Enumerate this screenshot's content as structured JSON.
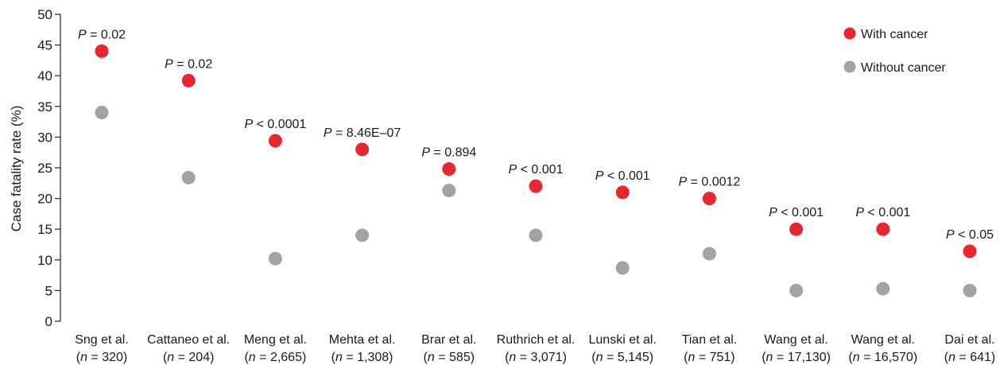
{
  "chart_data": {
    "type": "scatter",
    "title": "",
    "xlabel": "",
    "ylabel": "Case fatality rate (%)",
    "ylim": [
      0,
      50
    ],
    "yticks": [
      0,
      5,
      10,
      15,
      20,
      25,
      30,
      35,
      40,
      45,
      50
    ],
    "grid": false,
    "legend_position": "top-right",
    "categories": [
      {
        "name": "Sng et al.",
        "n": "320"
      },
      {
        "name": "Cattaneo et al.",
        "n": "204"
      },
      {
        "name": "Meng et al.",
        "n": "2,665"
      },
      {
        "name": "Mehta et al.",
        "n": "1,308"
      },
      {
        "name": "Brar et al.",
        "n": "585"
      },
      {
        "name": "Ruthrich et al.",
        "n": "3,071"
      },
      {
        "name": "Lunski et al.",
        "n": "5,145"
      },
      {
        "name": "Tian et al.",
        "n": "751"
      },
      {
        "name": "Wang et al.",
        "n": "17,130"
      },
      {
        "name": "Wang et al.",
        "n": "16,570"
      },
      {
        "name": "Dai et al.",
        "n": "641"
      }
    ],
    "p_values": [
      {
        "op": "=",
        "value": "0.02"
      },
      {
        "op": "=",
        "value": "0.02"
      },
      {
        "op": "<",
        "value": "0.0001"
      },
      {
        "op": "=",
        "value": "8.46E–07"
      },
      {
        "op": "=",
        "value": "0.894"
      },
      {
        "op": "<",
        "value": "0.001"
      },
      {
        "op": "<",
        "value": "0.001"
      },
      {
        "op": "=",
        "value": "0.0012"
      },
      {
        "op": "<",
        "value": "0.001"
      },
      {
        "op": "<",
        "value": "0.001"
      },
      {
        "op": "<",
        "value": "0.05"
      }
    ],
    "series": [
      {
        "name": "With cancer",
        "color": "#e8262d",
        "values": [
          44,
          39.2,
          29.4,
          28,
          24.8,
          22,
          21,
          20,
          15,
          15,
          11.4
        ]
      },
      {
        "name": "Without cancer",
        "color": "#a3a3a3",
        "values": [
          34,
          23.4,
          10.2,
          14,
          21.3,
          14,
          8.7,
          11,
          5,
          5.3,
          5
        ]
      }
    ]
  }
}
